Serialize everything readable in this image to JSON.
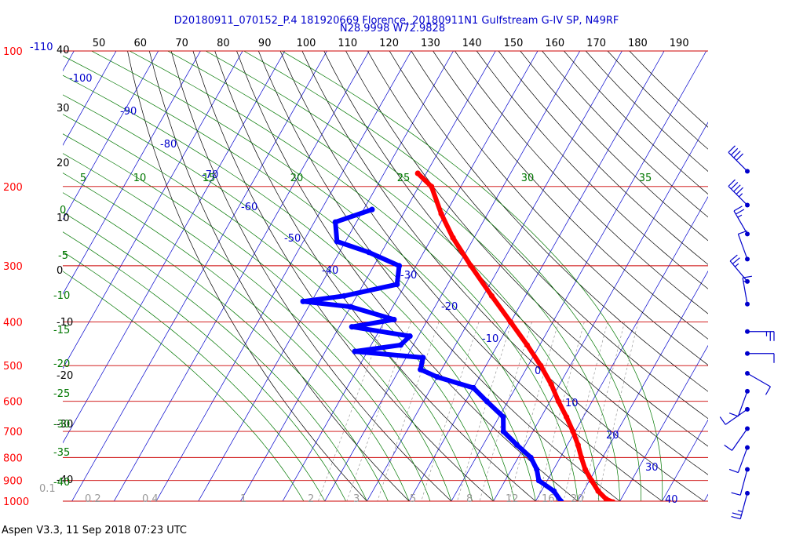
{
  "title_line1": "D20180911_070152_P.4 181920669 Florence, 20180911N1 Gulfstream G-IV SP, N49RF",
  "title_line2": "N28.9998 W72.9828",
  "footer": "Aspen V3.3, 11 Sep 2018  07:23 UTC",
  "colors": {
    "isobar": "#cc0000",
    "pressure_label": "#ff0000",
    "isotherm": "#0000cc",
    "isotherm_label": "#0000cc",
    "dry_adiabat": "#000000",
    "moist_adiabat": "#007700",
    "mixing_ratio": "#999999",
    "temperature_trace": "#ff0000",
    "dewpoint_trace": "#0000ff",
    "wind_barb": "#0000cc"
  },
  "chart_data": {
    "type": "skew-t log-p",
    "y_axis": "pressure (hPa, log scale)",
    "pressure_levels": [
      100,
      200,
      300,
      400,
      500,
      600,
      700,
      800,
      900,
      1000
    ],
    "pressure_labels": [
      "100",
      "200",
      "300",
      "400",
      "500",
      "600",
      "700",
      "800",
      "900",
      "1000"
    ],
    "left_scale_values": [
      "40",
      "30",
      "20",
      "10",
      "0",
      "-10",
      "-20",
      "-30",
      "-40"
    ],
    "top_scale_values": [
      "50",
      "60",
      "70",
      "80",
      "90",
      "100",
      "110",
      "120",
      "130",
      "140",
      "150",
      "160",
      "170",
      "180",
      "190"
    ],
    "isotherm_labels": [
      "-110",
      "-100",
      "-90",
      "-80",
      "-70",
      "-60",
      "-50",
      "-40",
      "-30",
      "-20",
      "-10",
      "0",
      "10",
      "20",
      "30",
      "40"
    ],
    "moist_adiabat_labels_top": [
      "5",
      "10",
      "15",
      "20",
      "25",
      "30",
      "35"
    ],
    "moist_adiabat_labels_left": [
      "0",
      "-5",
      "-10",
      "-15",
      "-20",
      "-25",
      "-30",
      "-35",
      "-40"
    ],
    "mixing_ratio_labels": [
      "0.1",
      "0.2",
      "0.4",
      "1",
      "2",
      "3",
      "5",
      "8",
      "12",
      "16",
      "20"
    ],
    "temperature": [
      {
        "p": 187,
        "t": -62
      },
      {
        "p": 200,
        "t": -57
      },
      {
        "p": 230,
        "t": -51
      },
      {
        "p": 260,
        "t": -45
      },
      {
        "p": 300,
        "t": -37
      },
      {
        "p": 350,
        "t": -28
      },
      {
        "p": 400,
        "t": -20
      },
      {
        "p": 450,
        "t": -13
      },
      {
        "p": 500,
        "t": -7
      },
      {
        "p": 550,
        "t": -2
      },
      {
        "p": 600,
        "t": 2
      },
      {
        "p": 650,
        "t": 6
      },
      {
        "p": 700,
        "t": 9.5
      },
      {
        "p": 750,
        "t": 12.5
      },
      {
        "p": 800,
        "t": 15
      },
      {
        "p": 850,
        "t": 17.5
      },
      {
        "p": 900,
        "t": 20.5
      },
      {
        "p": 950,
        "t": 23.5
      },
      {
        "p": 990,
        "t": 26.5
      },
      {
        "p": 1005,
        "t": 28.5
      }
    ],
    "dewpoint": [
      {
        "p": 225,
        "t": -68
      },
      {
        "p": 240,
        "t": -75
      },
      {
        "p": 265,
        "t": -72
      },
      {
        "p": 280,
        "t": -63
      },
      {
        "p": 300,
        "t": -54
      },
      {
        "p": 330,
        "t": -52
      },
      {
        "p": 350,
        "t": -63
      },
      {
        "p": 360,
        "t": -72
      },
      {
        "p": 370,
        "t": -60
      },
      {
        "p": 395,
        "t": -48
      },
      {
        "p": 410,
        "t": -57
      },
      {
        "p": 430,
        "t": -42
      },
      {
        "p": 450,
        "t": -43
      },
      {
        "p": 465,
        "t": -53
      },
      {
        "p": 480,
        "t": -36
      },
      {
        "p": 510,
        "t": -35
      },
      {
        "p": 530,
        "t": -30
      },
      {
        "p": 560,
        "t": -20
      },
      {
        "p": 600,
        "t": -15
      },
      {
        "p": 650,
        "t": -9
      },
      {
        "p": 700,
        "t": -7
      },
      {
        "p": 750,
        "t": -2
      },
      {
        "p": 800,
        "t": 3
      },
      {
        "p": 850,
        "t": 6
      },
      {
        "p": 900,
        "t": 8
      },
      {
        "p": 950,
        "t": 13
      },
      {
        "p": 1000,
        "t": 16
      }
    ],
    "wind_barbs": [
      {
        "p": 185,
        "dir": 315,
        "spd": 40
      },
      {
        "p": 220,
        "dir": 315,
        "spd": 35
      },
      {
        "p": 255,
        "dir": 330,
        "spd": 15
      },
      {
        "p": 290,
        "dir": 340,
        "spd": 10
      },
      {
        "p": 325,
        "dir": 320,
        "spd": 15
      },
      {
        "p": 365,
        "dir": 350,
        "spd": 5
      },
      {
        "p": 420,
        "dir": 90,
        "spd": 15
      },
      {
        "p": 470,
        "dir": 90,
        "spd": 10
      },
      {
        "p": 520,
        "dir": 120,
        "spd": 10
      },
      {
        "p": 570,
        "dir": 200,
        "spd": 10
      },
      {
        "p": 625,
        "dir": 235,
        "spd": 10
      },
      {
        "p": 690,
        "dir": 215,
        "spd": 10
      },
      {
        "p": 760,
        "dir": 200,
        "spd": 10
      },
      {
        "p": 850,
        "dir": 195,
        "spd": 10
      },
      {
        "p": 960,
        "dir": 195,
        "spd": 15
      }
    ]
  }
}
